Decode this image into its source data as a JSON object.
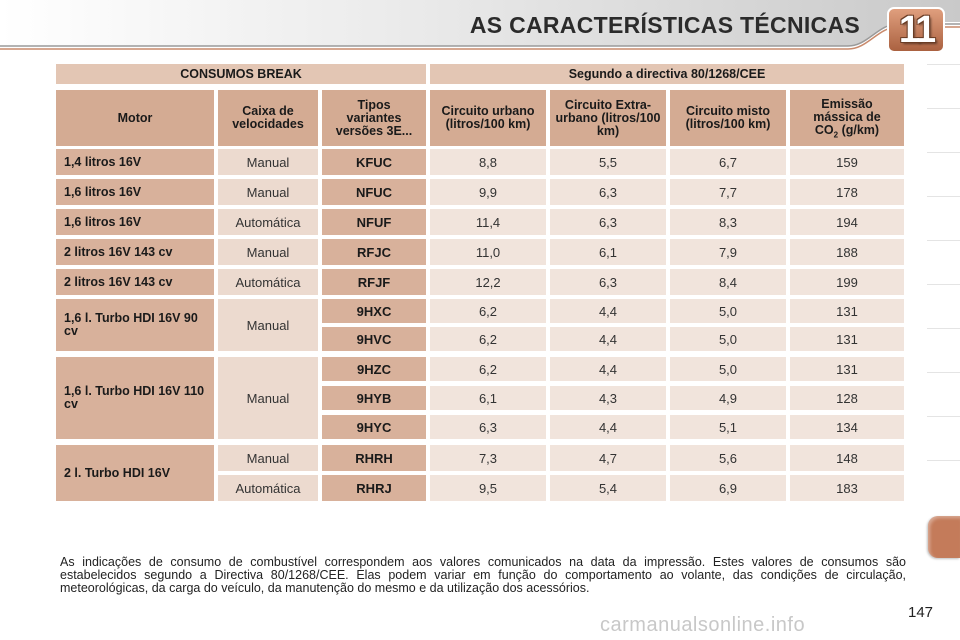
{
  "header": {
    "chapter_title": "AS CARACTERÍSTICAS TÉCNICAS",
    "chapter_number": "11"
  },
  "table": {
    "group_headers": [
      "CONSUMOS BREAK",
      "Segundo a directiva 80/1268/CEE"
    ],
    "columns": {
      "motor": "Motor",
      "gearbox": "Caixa de velocidades",
      "variants": "Tipos variantes versões 3E...",
      "urban": "Circuito urbano (litros/100 km)",
      "extra_urban": "Circuito Extra-urbano (litros/100 km)",
      "mixed": "Circuito misto (litros/100 km)",
      "co2_prefix": "Emissão mássica de CO",
      "co2_sub": "2",
      "co2_suffix": " (g/km)"
    },
    "motors": [
      "1,4 litros 16V",
      "1,6 litros 16V",
      "1,6 litros 16V",
      "2 litros 16V 143 cv",
      "2 litros 16V 143 cv",
      "1,6 l. Turbo HDI 16V 90 cv",
      "1,6 l. Turbo HDI 16V 110 cv",
      "2 l. Turbo HDI 16V"
    ],
    "gearboxes": [
      "Manual",
      "Manual",
      "Automática",
      "Manual",
      "Automática",
      "Manual",
      "Manual",
      "Manual",
      "Automática"
    ],
    "rows": [
      {
        "code": "KFUC",
        "urban": "8,8",
        "extra": "5,5",
        "mixed": "6,7",
        "co2": "159"
      },
      {
        "code": "NFUC",
        "urban": "9,9",
        "extra": "6,3",
        "mixed": "7,7",
        "co2": "178"
      },
      {
        "code": "NFUF",
        "urban": "11,4",
        "extra": "6,3",
        "mixed": "8,3",
        "co2": "194"
      },
      {
        "code": "RFJC",
        "urban": "11,0",
        "extra": "6,1",
        "mixed": "7,9",
        "co2": "188"
      },
      {
        "code": "RFJF",
        "urban": "12,2",
        "extra": "6,3",
        "mixed": "8,4",
        "co2": "199"
      },
      {
        "code": "9HXC",
        "urban": "6,2",
        "extra": "4,4",
        "mixed": "5,0",
        "co2": "131"
      },
      {
        "code": "9HVC",
        "urban": "6,2",
        "extra": "4,4",
        "mixed": "5,0",
        "co2": "131"
      },
      {
        "code": "9HZC",
        "urban": "6,2",
        "extra": "4,4",
        "mixed": "5,0",
        "co2": "131"
      },
      {
        "code": "9HYB",
        "urban": "6,1",
        "extra": "4,3",
        "mixed": "4,9",
        "co2": "128"
      },
      {
        "code": "9HYC",
        "urban": "6,3",
        "extra": "4,4",
        "mixed": "5,1",
        "co2": "134"
      },
      {
        "code": "RHRH",
        "urban": "7,3",
        "extra": "4,7",
        "mixed": "5,6",
        "co2": "148"
      },
      {
        "code": "RHRJ",
        "urban": "9,5",
        "extra": "5,4",
        "mixed": "6,9",
        "co2": "183"
      }
    ]
  },
  "footnote": "As indicações de consumo de combustível correspondem aos valores comunicados na data da impressão. Estes valores de consumos são estabelecidos segundo a Directiva 80/1268/CEE. Elas podem variar em função do comportamento ao volante, das condições de circulação, meteorológicas, da carga do veículo, da manutenção do mesmo e da utilização dos acessórios.",
  "page_number": "147",
  "watermark": "carmanualsonline.info",
  "colors": {
    "accent": "#c47b5a",
    "header_cell": "#d4ab93",
    "value_cell": "#f1e4dc"
  }
}
